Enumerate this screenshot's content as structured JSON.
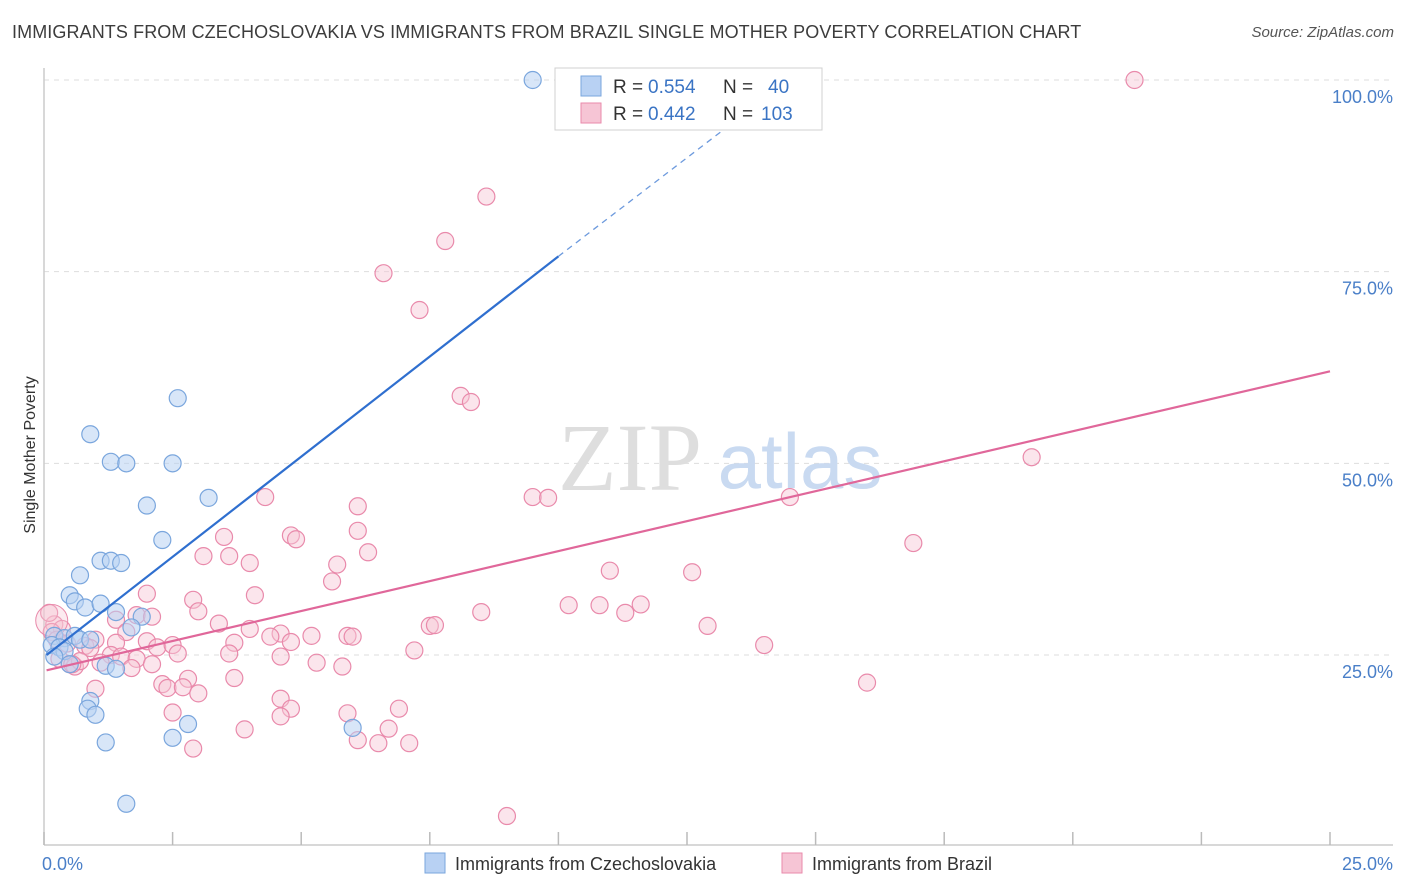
{
  "title": "IMMIGRANTS FROM CZECHOSLOVAKIA VS IMMIGRANTS FROM BRAZIL SINGLE MOTHER POVERTY CORRELATION CHART",
  "source": "Source: ZipAtlas.com",
  "watermark": {
    "zip": "ZIP",
    "atlas": "atlas"
  },
  "colors": {
    "blue_fill": "#b8d1f3",
    "blue_stroke": "#7aa6dd",
    "blue_line": "#2f6fcf",
    "pink_fill": "#f6c5d5",
    "pink_stroke": "#e98aab",
    "pink_line": "#e0679a",
    "grid": "#dddddd",
    "tick_text": "#4a7fc8"
  },
  "legend_top": {
    "rows": [
      {
        "r_label": "R = ",
        "r_value": "0.554",
        "n_label": "N = ",
        "n_value": "40",
        "series": "blue"
      },
      {
        "r_label": "R = ",
        "r_value": "0.442",
        "n_label": "N = ",
        "n_value": "103",
        "series": "pink"
      }
    ]
  },
  "chart_data": {
    "type": "scatter",
    "title": "IMMIGRANTS FROM CZECHOSLOVAKIA VS IMMIGRANTS FROM BRAZIL SINGLE MOTHER POVERTY CORRELATION CHART",
    "xlabel": "",
    "ylabel": "Single Mother Poverty",
    "xlim": [
      0,
      25
    ],
    "ylim": [
      0,
      100
    ],
    "x_tick_labels": [
      "0.0%",
      "25.0%"
    ],
    "y_ticks": [
      25,
      50,
      75,
      100
    ],
    "y_tick_labels": [
      "25.0%",
      "50.0%",
      "75.0%",
      "100.0%"
    ],
    "grid": true,
    "legend_position": "top-center",
    "series": [
      {
        "name": "Immigrants from Czechoslovakia",
        "color": "blue",
        "R": 0.554,
        "N": 40,
        "trend": {
          "x0": 0.05,
          "y0": 25.0,
          "x1": 10.0,
          "y1": 77.0,
          "dash_to_x": 13.5,
          "dash_to_y": 95.0
        },
        "points": [
          [
            9.5,
            100.0
          ],
          [
            2.6,
            58.5
          ],
          [
            0.9,
            53.8
          ],
          [
            1.3,
            50.2
          ],
          [
            1.6,
            50.0
          ],
          [
            2.5,
            50.0
          ],
          [
            3.2,
            45.5
          ],
          [
            2.0,
            44.5
          ],
          [
            2.3,
            40.0
          ],
          [
            1.1,
            37.3
          ],
          [
            1.3,
            37.3
          ],
          [
            1.5,
            37.0
          ],
          [
            0.7,
            35.4
          ],
          [
            0.5,
            32.8
          ],
          [
            0.6,
            32.0
          ],
          [
            0.8,
            31.2
          ],
          [
            1.1,
            31.7
          ],
          [
            1.4,
            30.6
          ],
          [
            1.9,
            30.0
          ],
          [
            1.7,
            28.6
          ],
          [
            0.2,
            27.5
          ],
          [
            0.4,
            27.2
          ],
          [
            0.6,
            27.5
          ],
          [
            0.7,
            27.0
          ],
          [
            0.9,
            27.0
          ],
          [
            0.15,
            26.3
          ],
          [
            0.3,
            26.0
          ],
          [
            0.4,
            25.5
          ],
          [
            0.2,
            24.8
          ],
          [
            0.5,
            23.8
          ],
          [
            1.2,
            23.6
          ],
          [
            1.4,
            23.2
          ],
          [
            0.9,
            19.0
          ],
          [
            0.85,
            18.0
          ],
          [
            1.0,
            17.2
          ],
          [
            2.8,
            16.0
          ],
          [
            6.0,
            15.5
          ],
          [
            2.5,
            14.2
          ],
          [
            1.2,
            13.6
          ],
          [
            1.6,
            5.6
          ]
        ]
      },
      {
        "name": "Immigrants from Brazil",
        "color": "pink",
        "R": 0.442,
        "N": 103,
        "trend": {
          "x0": 0.05,
          "y0": 23.0,
          "x1": 25.0,
          "y1": 62.0
        },
        "points": [
          [
            21.2,
            100.0
          ],
          [
            8.6,
            84.8
          ],
          [
            7.8,
            79.0
          ],
          [
            6.6,
            74.8
          ],
          [
            7.3,
            70.0
          ],
          [
            8.1,
            58.8
          ],
          [
            8.3,
            58.0
          ],
          [
            19.2,
            50.8
          ],
          [
            4.3,
            45.6
          ],
          [
            9.5,
            45.6
          ],
          [
            9.8,
            45.5
          ],
          [
            14.5,
            45.6
          ],
          [
            6.1,
            44.4
          ],
          [
            6.1,
            41.2
          ],
          [
            4.8,
            40.6
          ],
          [
            4.9,
            40.1
          ],
          [
            3.5,
            40.4
          ],
          [
            16.9,
            39.6
          ],
          [
            6.3,
            38.4
          ],
          [
            3.1,
            37.9
          ],
          [
            3.6,
            37.9
          ],
          [
            4.0,
            37.0
          ],
          [
            5.7,
            36.8
          ],
          [
            11.0,
            36.0
          ],
          [
            12.6,
            35.8
          ],
          [
            5.6,
            34.6
          ],
          [
            2.0,
            33.0
          ],
          [
            4.1,
            32.8
          ],
          [
            2.9,
            32.2
          ],
          [
            10.2,
            31.5
          ],
          [
            10.8,
            31.5
          ],
          [
            11.6,
            31.6
          ],
          [
            11.3,
            30.5
          ],
          [
            8.5,
            30.6
          ],
          [
            3.0,
            30.7
          ],
          [
            1.8,
            30.2
          ],
          [
            2.1,
            30.0
          ],
          [
            1.4,
            29.6
          ],
          [
            3.4,
            29.1
          ],
          [
            7.5,
            28.8
          ],
          [
            7.6,
            28.9
          ],
          [
            12.9,
            28.8
          ],
          [
            1.6,
            28.0
          ],
          [
            4.0,
            28.4
          ],
          [
            4.6,
            27.8
          ],
          [
            4.4,
            27.4
          ],
          [
            5.2,
            27.5
          ],
          [
            5.9,
            27.5
          ],
          [
            6.0,
            27.4
          ],
          [
            4.8,
            26.7
          ],
          [
            1.0,
            27.0
          ],
          [
            1.4,
            26.6
          ],
          [
            0.8,
            26.2
          ],
          [
            0.9,
            25.9
          ],
          [
            2.0,
            26.8
          ],
          [
            2.2,
            26.0
          ],
          [
            2.5,
            26.3
          ],
          [
            3.7,
            26.6
          ],
          [
            2.6,
            25.2
          ],
          [
            7.2,
            25.6
          ],
          [
            14.0,
            26.3
          ],
          [
            0.2,
            29.0
          ],
          [
            0.35,
            28.4
          ],
          [
            0.1,
            30.5
          ],
          [
            1.3,
            25.0
          ],
          [
            1.5,
            24.8
          ],
          [
            1.8,
            24.5
          ],
          [
            3.6,
            25.2
          ],
          [
            4.6,
            24.8
          ],
          [
            0.5,
            23.8
          ],
          [
            0.6,
            23.5
          ],
          [
            1.7,
            23.3
          ],
          [
            2.1,
            23.8
          ],
          [
            5.3,
            24.0
          ],
          [
            5.8,
            23.5
          ],
          [
            3.7,
            22.0
          ],
          [
            2.8,
            21.9
          ],
          [
            2.3,
            21.2
          ],
          [
            2.4,
            20.7
          ],
          [
            2.7,
            20.8
          ],
          [
            3.0,
            20.0
          ],
          [
            1.0,
            20.6
          ],
          [
            16.0,
            21.4
          ],
          [
            4.6,
            19.3
          ],
          [
            4.8,
            18.0
          ],
          [
            6.9,
            18.0
          ],
          [
            2.5,
            17.5
          ],
          [
            5.9,
            17.4
          ],
          [
            4.6,
            17.0
          ],
          [
            3.9,
            15.3
          ],
          [
            6.7,
            15.4
          ],
          [
            6.1,
            13.9
          ],
          [
            6.5,
            13.5
          ],
          [
            7.1,
            13.5
          ],
          [
            2.9,
            12.8
          ],
          [
            9.0,
            4.0
          ],
          [
            0.15,
            28.0
          ],
          [
            0.25,
            27.0
          ],
          [
            0.3,
            24.5
          ],
          [
            0.45,
            26.5
          ],
          [
            0.7,
            24.2
          ],
          [
            1.1,
            24.0
          ],
          [
            0.55,
            23.8
          ]
        ]
      }
    ]
  },
  "bottom_legend": {
    "items": [
      {
        "label": "Immigrants from Czechoslovakia",
        "series": "blue"
      },
      {
        "label": "Immigrants from Brazil",
        "series": "pink"
      }
    ]
  }
}
